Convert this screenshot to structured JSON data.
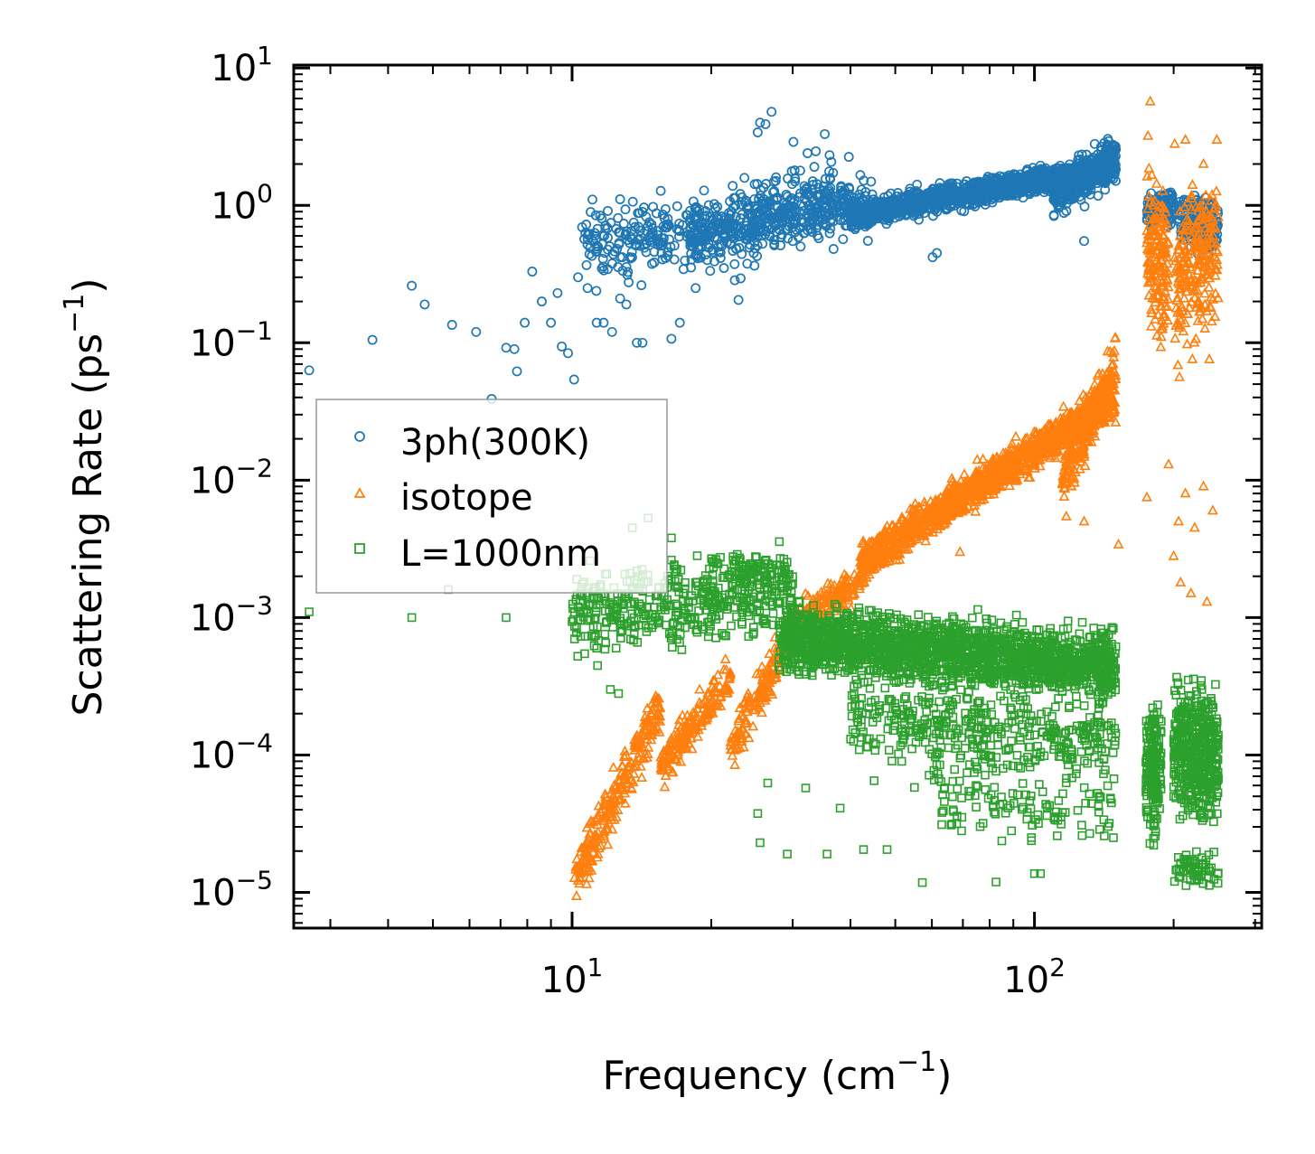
{
  "chart_data": {
    "type": "scatter",
    "title": "",
    "xlabel": {
      "base": "Frequency (cm",
      "sup": "−1",
      "close": ")"
    },
    "ylabel": {
      "base": "Scattering Rate (ps",
      "sup": "−1",
      "close": ")"
    },
    "xscale": "log",
    "yscale": "log",
    "xlim": [
      2.5,
      310
    ],
    "ylim": [
      5.5e-06,
      10.5
    ],
    "xticks": [
      {
        "value": 10,
        "base": "10",
        "exp": "1"
      },
      {
        "value": 100,
        "base": "10",
        "exp": "2"
      }
    ],
    "yticks": [
      {
        "value": 1e-05,
        "base": "10",
        "exp": "−5"
      },
      {
        "value": 0.0001,
        "base": "10",
        "exp": "−4"
      },
      {
        "value": 0.001,
        "base": "10",
        "exp": "−3"
      },
      {
        "value": 0.01,
        "base": "10",
        "exp": "−2"
      },
      {
        "value": 0.1,
        "base": "10",
        "exp": "−1"
      },
      {
        "value": 1,
        "base": "10",
        "exp": "0"
      },
      {
        "value": 10,
        "base": "10",
        "exp": "1"
      }
    ],
    "legend_position": "center-left",
    "series": [
      {
        "name": "3ph(300K)",
        "marker": "circle",
        "color": "#1f77b4",
        "points": [
          [
            2.7,
            0.063
          ],
          [
            3.7,
            0.105
          ],
          [
            4.5,
            0.26
          ],
          [
            4.8,
            0.19
          ],
          [
            5.5,
            0.135
          ],
          [
            6.2,
            0.12
          ],
          [
            6.7,
            0.039
          ],
          [
            7.2,
            0.092
          ],
          [
            7.5,
            0.09
          ],
          [
            7.6,
            0.062
          ],
          [
            7.9,
            0.14
          ],
          [
            8.2,
            0.33
          ],
          [
            8.6,
            0.2
          ],
          [
            9.0,
            0.14
          ],
          [
            9.3,
            0.23
          ],
          [
            9.5,
            0.094
          ],
          [
            9.8,
            0.084
          ],
          [
            10.1,
            0.054
          ],
          [
            10.3,
            0.3
          ],
          [
            10.8,
            0.25
          ],
          [
            11.3,
            0.14
          ],
          [
            11.7,
            0.14
          ],
          [
            12.2,
            0.12
          ],
          [
            12.7,
            0.21
          ],
          [
            13.1,
            0.19
          ],
          [
            13.8,
            0.1
          ],
          [
            14.2,
            0.1
          ],
          [
            16.4,
            0.107
          ],
          [
            17.1,
            0.14
          ],
          [
            18.5,
            0.25
          ],
          [
            19.6,
            0.4
          ],
          [
            21.3,
            0.35
          ],
          [
            22.9,
            0.205
          ],
          [
            25.2,
            3.4
          ],
          [
            25.5,
            4.0
          ],
          [
            26.2,
            3.9
          ],
          [
            27.0,
            4.8
          ],
          [
            30.1,
            2.9
          ],
          [
            32.3,
            2.4
          ],
          [
            35.2,
            3.3
          ],
          [
            60.2,
            0.42
          ],
          [
            61.5,
            0.45
          ],
          [
            128.0,
            0.55
          ],
          [
            135.0,
            2.8
          ]
        ],
        "bands": [
          {
            "x": [
              10.5,
              25
            ],
            "yc": [
              0.55,
              0.7
            ],
            "spread": 0.28,
            "n": 260
          },
          {
            "x": [
              18,
              45
            ],
            "yc": [
              0.6,
              1.0
            ],
            "spread": 0.2,
            "n": 380
          },
          {
            "x": [
              25,
              40
            ],
            "yc": [
              1.2,
              1.3
            ],
            "spread": 0.2,
            "n": 100
          },
          {
            "x": [
              40,
              150
            ],
            "yc": [
              0.85,
              1.9
            ],
            "spread": 0.09,
            "n": 1300
          },
          {
            "x": [
              110,
              150
            ],
            "yc": [
              1.2,
              2.2
            ],
            "spread": 0.15,
            "n": 350
          },
          {
            "x": [
              175,
              200
            ],
            "yc": [
              0.9,
              1.0
            ],
            "spread": 0.12,
            "n": 120
          },
          {
            "x": [
              205,
              250
            ],
            "yc": [
              0.8,
              0.7
            ],
            "spread": 0.2,
            "n": 180
          }
        ]
      },
      {
        "name": "isotope",
        "marker": "triangle",
        "color": "#ff7f0e",
        "points": [
          [
            27.0,
            0.00035
          ],
          [
            47.0,
            0.0025
          ],
          [
            69.0,
            0.003
          ],
          [
            128.0,
            0.005
          ],
          [
            152.0,
            0.0034
          ],
          [
            175.0,
            0.0075
          ],
          [
            200.0,
            0.0028
          ],
          [
            207.0,
            0.0018
          ],
          [
            218.0,
            0.0015
          ],
          [
            236.0,
            0.0013
          ],
          [
            183.0,
            0.25
          ],
          [
            188.0,
            0.11
          ],
          [
            195.0,
            0.013
          ],
          [
            205.0,
            0.005
          ],
          [
            212.0,
            0.008
          ],
          [
            222.0,
            0.0045
          ],
          [
            232.0,
            0.009
          ],
          [
            243.0,
            0.006
          ],
          [
            178.0,
            5.7
          ],
          [
            176.0,
            3.2
          ],
          [
            201.0,
            2.8
          ],
          [
            212.0,
            3.0
          ],
          [
            232.0,
            2.0
          ],
          [
            248.0,
            3.0
          ]
        ],
        "bands": [
          {
            "x": [
              10.1,
              15.5
            ],
            "yc": [
              1.2e-05,
              0.00022
            ],
            "spread": 0.18,
            "n": 260
          },
          {
            "x": [
              15.5,
              22
            ],
            "yc": [
              8e-05,
              0.00035
            ],
            "spread": 0.15,
            "n": 180
          },
          {
            "x": [
              22,
              30
            ],
            "yc": [
              0.00011,
              0.0008
            ],
            "spread": 0.16,
            "n": 160
          },
          {
            "x": [
              30,
              42
            ],
            "yc": [
              0.0009,
              0.0018
            ],
            "spread": 0.12,
            "n": 180
          },
          {
            "x": [
              42,
              150
            ],
            "yc": [
              0.0025,
              0.04
            ],
            "spread": 0.14,
            "n": 1300
          },
          {
            "x": [
              115,
              150
            ],
            "yc": [
              0.01,
              0.07
            ],
            "spread": 0.2,
            "n": 260
          },
          {
            "x": [
              175,
              195
            ],
            "yc": [
              0.5,
              0.35
            ],
            "spread": 0.45,
            "n": 160
          },
          {
            "x": [
              200,
              250
            ],
            "yc": [
              0.3,
              0.5
            ],
            "spread": 0.5,
            "n": 230
          }
        ]
      },
      {
        "name": "L=1000nm",
        "marker": "square",
        "color": "#2ca02c",
        "points": [
          [
            2.7,
            0.0011
          ],
          [
            4.5,
            0.001
          ],
          [
            5.4,
            0.0016
          ],
          [
            7.2,
            0.001
          ],
          [
            13.5,
            0.0045
          ],
          [
            14.6,
            0.0053
          ],
          [
            16.4,
            0.0038
          ],
          [
            25.2,
            3.75e-05
          ],
          [
            25.5,
            2.3e-05
          ],
          [
            29.2,
            1.9e-05
          ],
          [
            35.6,
            1.9e-05
          ],
          [
            42.7,
            2.05e-05
          ],
          [
            48.0,
            2.05e-05
          ],
          [
            57.2,
            1.18e-05
          ],
          [
            82.6,
            1.19e-05
          ],
          [
            100.0,
            1.37e-05
          ],
          [
            103.0,
            1.37e-05
          ],
          [
            12.1,
            0.0003
          ],
          [
            12.6,
            0.00028
          ],
          [
            11.3,
            0.0006
          ],
          [
            26.5,
            6.25e-05
          ],
          [
            32.0,
            5.75e-05
          ],
          [
            38.0,
            4.1e-05
          ],
          [
            45.0,
            6.5e-05
          ],
          [
            55.0,
            5.8e-05
          ]
        ],
        "bands": [
          {
            "x": [
              10,
              30
            ],
            "yc": [
              0.0011,
              0.0015
            ],
            "spread": 0.28,
            "n": 450
          },
          {
            "x": [
              20,
              30
            ],
            "yc": [
              0.0025,
              0.002
            ],
            "spread": 0.1,
            "n": 80
          },
          {
            "x": [
              28,
              150
            ],
            "yc": [
              0.0007,
              0.00045
            ],
            "spread": 0.22,
            "n": 2000
          },
          {
            "x": [
              40,
              150
            ],
            "yc": [
              0.00018,
              0.00012
            ],
            "spread": 0.28,
            "n": 400
          },
          {
            "x": [
              60,
              150
            ],
            "yc": [
              5e-05,
              4e-05
            ],
            "spread": 0.25,
            "n": 120
          },
          {
            "x": [
              174,
              188
            ],
            "yc": [
              8e-05,
              8e-05
            ],
            "spread": 0.45,
            "n": 180
          },
          {
            "x": [
              200,
              250
            ],
            "yc": [
              0.00011,
              9e-05
            ],
            "spread": 0.45,
            "n": 450
          },
          {
            "x": [
              200,
              250
            ],
            "yc": [
              1.5e-05,
              1.5e-05
            ],
            "spread": 0.12,
            "n": 60
          }
        ]
      }
    ]
  }
}
